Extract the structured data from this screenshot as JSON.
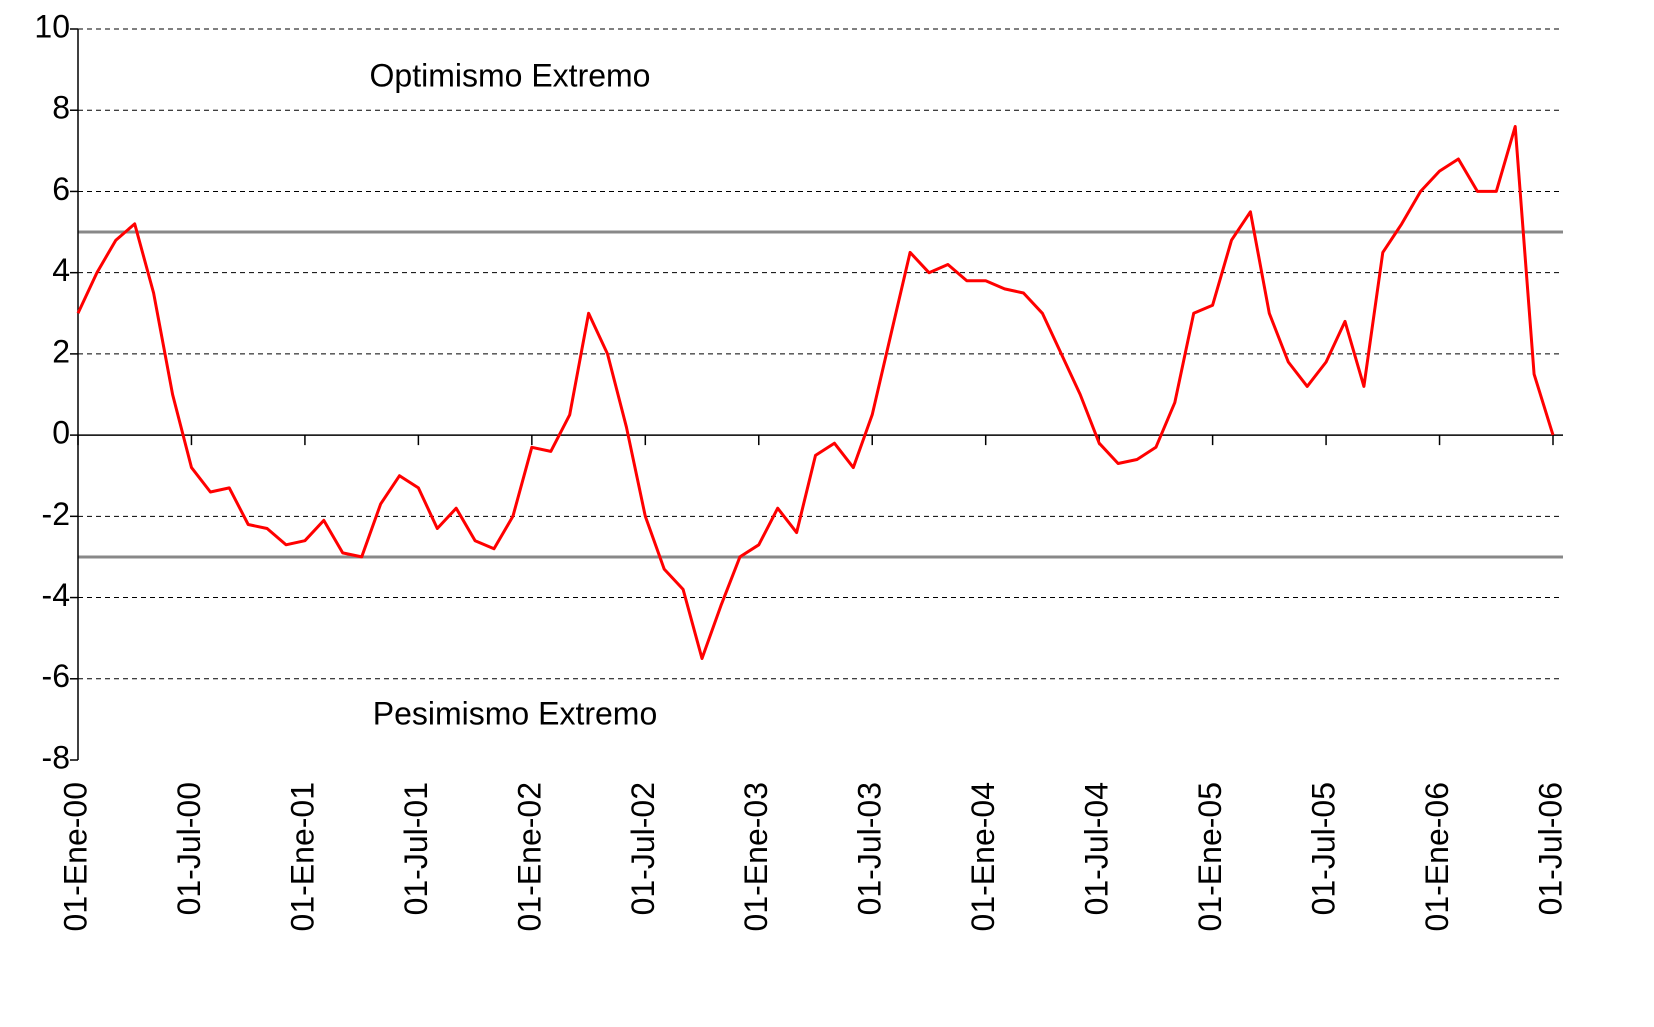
{
  "chart_data": {
    "type": "line",
    "annotations": [
      "Optimismo Extremo",
      "Pesimismo Extremo"
    ],
    "categories": [
      "01-Ene-00",
      null,
      null,
      null,
      null,
      null,
      "01-Jul-00",
      null,
      null,
      null,
      null,
      null,
      "01-Ene-01",
      null,
      null,
      null,
      null,
      null,
      "01-Jul-01",
      null,
      null,
      null,
      null,
      null,
      "01-Ene-02",
      null,
      null,
      null,
      null,
      null,
      "01-Jul-02",
      null,
      null,
      null,
      null,
      null,
      "01-Ene-03",
      null,
      null,
      null,
      null,
      null,
      "01-Jul-03",
      null,
      null,
      null,
      null,
      null,
      "01-Ene-04",
      null,
      null,
      null,
      null,
      null,
      "01-Jul-04",
      null,
      null,
      null,
      null,
      null,
      "01-Ene-05",
      null,
      null,
      null,
      null,
      null,
      "01-Jul-05",
      null,
      null,
      null,
      null,
      null,
      "01-Ene-06",
      null,
      null,
      null,
      null,
      null,
      "01-Jul-06"
    ],
    "series": [
      {
        "color": "#ff0000",
        "values": [
          3.0,
          4.0,
          4.8,
          5.2,
          3.5,
          1.0,
          -0.8,
          -1.4,
          -1.3,
          -2.2,
          -2.3,
          -2.7,
          -2.6,
          -2.1,
          -2.9,
          -3.0,
          -1.7,
          -1.0,
          -1.3,
          -2.3,
          -1.8,
          -2.6,
          -2.8,
          -2.0,
          -0.3,
          -0.4,
          0.5,
          3.0,
          2.0,
          0.2,
          -2.0,
          -3.3,
          -3.8,
          -5.5,
          -4.2,
          -3.0,
          -2.7,
          -1.8,
          -2.4,
          -0.5,
          -0.2,
          -0.8,
          0.5,
          2.5,
          4.5,
          4.0,
          4.2,
          3.8,
          3.8,
          3.6,
          3.5,
          3.0,
          2.0,
          1.0,
          -0.2,
          -0.7,
          -0.6,
          -0.3,
          0.8,
          3.0,
          3.2,
          4.8,
          5.5,
          3.0,
          1.8,
          1.2,
          1.8,
          2.8,
          1.2,
          4.5,
          5.2,
          6.0,
          6.5,
          6.8,
          6.0,
          6.0,
          7.6,
          1.5,
          0.0
        ]
      }
    ],
    "thresholds": [
      5,
      -3
    ],
    "ylim": [
      -8,
      10
    ],
    "yticks": [
      -8,
      -6,
      -4,
      -2,
      0,
      2,
      4,
      6,
      8,
      10
    ],
    "grid": true
  }
}
